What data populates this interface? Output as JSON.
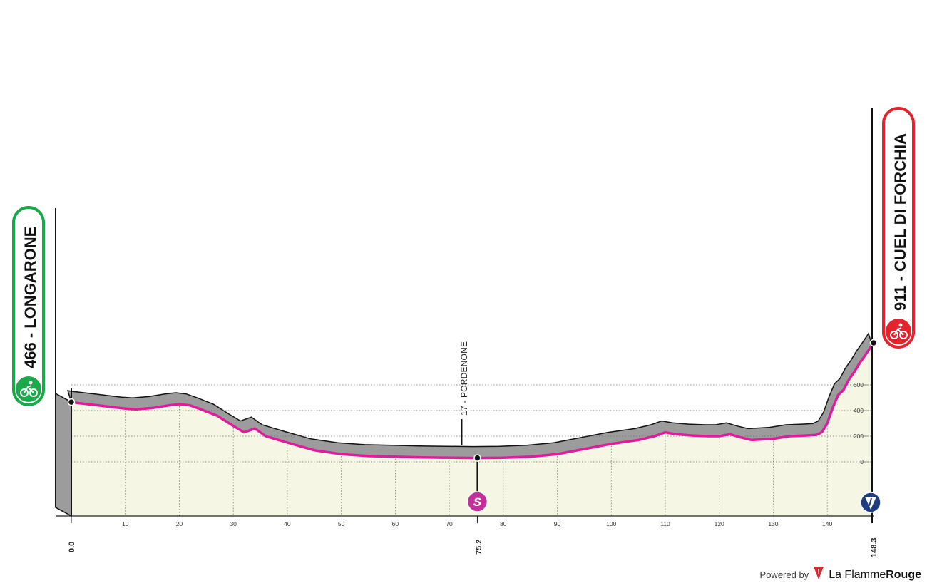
{
  "chart_data": {
    "type": "area",
    "xlim": [
      0,
      148.3
    ],
    "ylim": [
      -200,
      1000
    ],
    "grid": true,
    "x_ticks": [
      10,
      20,
      30,
      40,
      50,
      60,
      70,
      80,
      90,
      100,
      110,
      120,
      130,
      140
    ],
    "y_ticks": [
      0,
      200,
      400,
      600
    ],
    "profile": {
      "x": [
        0,
        1,
        3,
        5,
        8,
        10,
        12,
        15,
        18,
        20,
        22,
        24,
        27,
        30,
        32,
        34,
        36,
        40,
        45,
        50,
        55,
        60,
        65,
        70,
        75,
        80,
        85,
        90,
        95,
        100,
        105,
        108,
        110,
        112,
        115,
        118,
        120,
        122,
        124,
        126,
        128,
        130,
        133,
        136,
        138,
        139,
        140,
        141,
        142,
        143,
        144,
        145,
        146,
        147,
        148.3
      ],
      "y": [
        466,
        460,
        450,
        440,
        425,
        415,
        410,
        420,
        440,
        450,
        440,
        410,
        360,
        280,
        230,
        260,
        200,
        150,
        90,
        60,
        45,
        40,
        35,
        32,
        30,
        32,
        40,
        60,
        100,
        140,
        170,
        200,
        230,
        215,
        205,
        200,
        200,
        215,
        190,
        170,
        175,
        180,
        200,
        205,
        210,
        230,
        300,
        420,
        520,
        560,
        640,
        700,
        770,
        830,
        911
      ]
    },
    "start": {
      "km": "0.0",
      "altitude_label": "466 - LONGARONE",
      "color": "#1aa84a"
    },
    "finish": {
      "km": "148.3",
      "altitude_label": "911 - CUEL DI FORCHIA",
      "color": "#e5232d"
    },
    "sprint": {
      "km": 75.2,
      "km_label": "75.2",
      "place": "17 - PORDENONE",
      "marker_text": "S",
      "color": "#c2319a"
    },
    "line_color": "#e11c9b",
    "fill_color": "#f5f6e4",
    "shadow_color": "#9c9c9c",
    "finish_icon": "downhill-finish-icon"
  },
  "footer": {
    "powered_by": "Powered by",
    "brand_light": "La Flamme",
    "brand_bold": "Rouge"
  }
}
